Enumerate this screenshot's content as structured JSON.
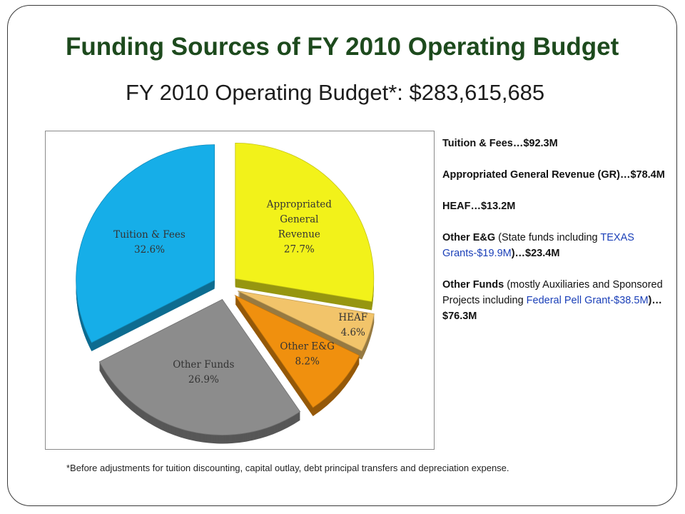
{
  "slide": {
    "title": "Funding Sources of FY 2010 Operating Budget",
    "subtitle": "FY 2010 Operating Budget*:  $283,615,685",
    "footnote": "*Before adjustments for tuition discounting, capital outlay, debt principal transfers and depreciation expense."
  },
  "legend": {
    "tuition": {
      "bold": "Tuition & Fees…$92.3M"
    },
    "gr": {
      "bold": "Appropriated General Revenue (GR)…$78.4M"
    },
    "heaf": {
      "bold": "HEAF…$13.2M"
    },
    "eg": {
      "bold": "Other E&G",
      "normal": " (State funds including ",
      "blue": "TEXAS Grants-$19.9M",
      "tail": ")…$23.4M"
    },
    "funds": {
      "bold": "Other Funds",
      "normal": " (mostly Auxiliaries and Sponsored Projects including ",
      "blue": "Federal Pell Grant-$38.5M",
      "tail": ")…$76.3M"
    }
  },
  "chart_data": {
    "type": "pie",
    "style": "3d-exploded",
    "slices": [
      {
        "label": [
          "Appropriated",
          "General",
          "Revenue"
        ],
        "pct": "27.7%",
        "value": 27.7,
        "color": "#f2f21a"
      },
      {
        "label": [
          "HEAF"
        ],
        "pct": "4.6%",
        "value": 4.6,
        "color": "#f2c46a"
      },
      {
        "label": [
          "Other E&G"
        ],
        "pct": "8.2%",
        "value": 8.2,
        "color": "#f0900e"
      },
      {
        "label": [
          "Other Funds"
        ],
        "pct": "26.9%",
        "value": 26.9,
        "color": "#8c8c8c"
      },
      {
        "label": [
          "Tuition & Fees"
        ],
        "pct": "32.6%",
        "value": 32.6,
        "color": "#16aee8"
      }
    ]
  }
}
